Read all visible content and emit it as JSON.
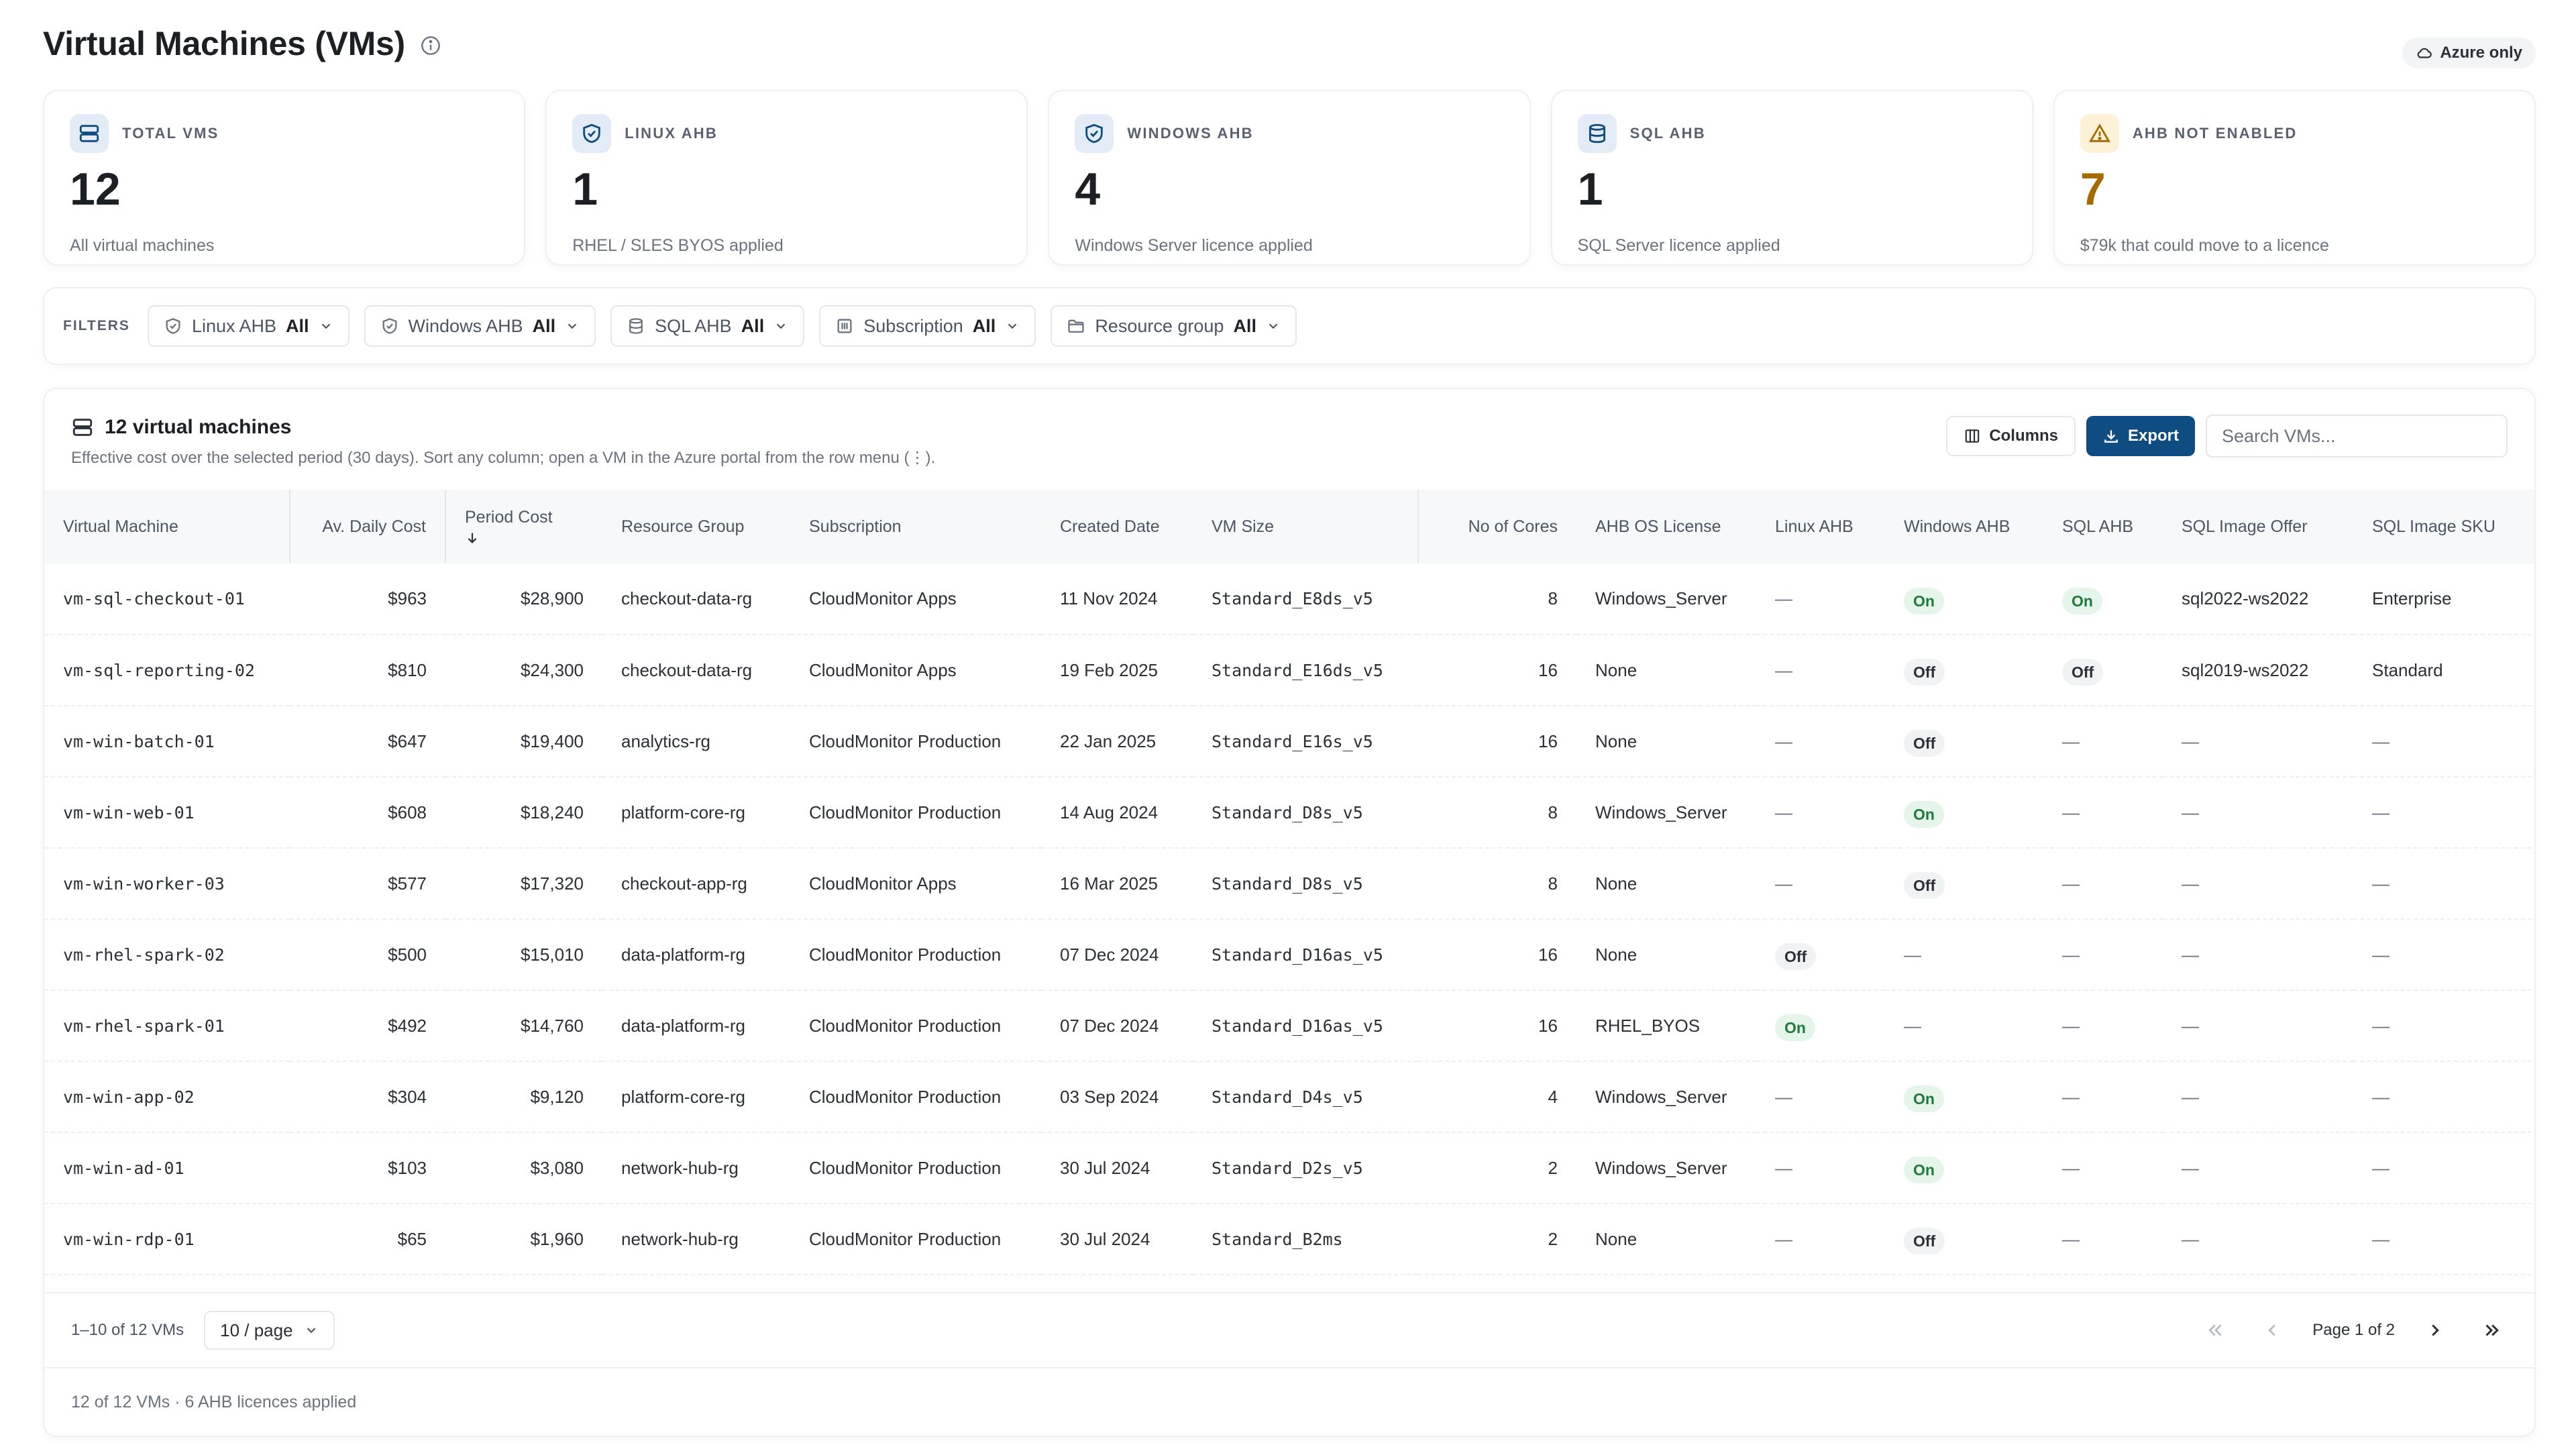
{
  "page": {
    "title": "Virtual Machines (VMs)",
    "azure_badge": "Azure only"
  },
  "kpis": [
    {
      "label": "TOTAL VMS",
      "value": "12",
      "desc": "All virtual machines",
      "icon": "server-icon"
    },
    {
      "label": "LINUX AHB",
      "value": "1",
      "desc": "RHEL / SLES BYOS applied",
      "icon": "shield-check-icon"
    },
    {
      "label": "WINDOWS AHB",
      "value": "4",
      "desc": "Windows Server licence applied",
      "icon": "shield-check-icon"
    },
    {
      "label": "SQL AHB",
      "value": "1",
      "desc": "SQL Server licence applied",
      "icon": "database-icon"
    },
    {
      "label": "AHB NOT ENABLED",
      "value": "7",
      "desc": "$79k that could move to a licence",
      "icon": "warning-icon"
    }
  ],
  "filters": {
    "label": "FILTERS",
    "items": [
      {
        "name": "Linux AHB",
        "value": "All",
        "icon": "shield-icon"
      },
      {
        "name": "Windows AHB",
        "value": "All",
        "icon": "shield-icon"
      },
      {
        "name": "SQL AHB",
        "value": "All",
        "icon": "database-icon"
      },
      {
        "name": "Subscription",
        "value": "All",
        "icon": "building-icon"
      },
      {
        "name": "Resource group",
        "value": "All",
        "icon": "folder-icon"
      }
    ]
  },
  "table_card": {
    "title": "12 virtual machines",
    "subtitle": "Effective cost over the selected period (30 days). Sort any column; open a VM in the Azure portal from the row menu (⋮).",
    "columns_btn": "Columns",
    "export_btn": "Export",
    "search_placeholder": "Search VMs..."
  },
  "columns": [
    "Virtual Machine",
    "Av. Daily Cost",
    "Period Cost",
    "Resource Group",
    "Subscription",
    "Created Date",
    "VM Size",
    "No of Cores",
    "AHB OS License",
    "Linux AHB",
    "Windows AHB",
    "SQL AHB",
    "SQL Image Offer",
    "SQL Image SKU"
  ],
  "rows": [
    [
      "vm-sql-checkout-01",
      "$963",
      "$28,900",
      "checkout-data-rg",
      "CloudMonitor Apps",
      "11 Nov 2024",
      "Standard_E8ds_v5",
      "8",
      "Windows_Server",
      "—",
      "On",
      "On",
      "sql2022-ws2022",
      "Enterprise"
    ],
    [
      "vm-sql-reporting-02",
      "$810",
      "$24,300",
      "checkout-data-rg",
      "CloudMonitor Apps",
      "19 Feb 2025",
      "Standard_E16ds_v5",
      "16",
      "None",
      "—",
      "Off",
      "Off",
      "sql2019-ws2022",
      "Standard"
    ],
    [
      "vm-win-batch-01",
      "$647",
      "$19,400",
      "analytics-rg",
      "CloudMonitor Production",
      "22 Jan 2025",
      "Standard_E16s_v5",
      "16",
      "None",
      "—",
      "Off",
      "—",
      "—",
      "—"
    ],
    [
      "vm-win-web-01",
      "$608",
      "$18,240",
      "platform-core-rg",
      "CloudMonitor Production",
      "14 Aug 2024",
      "Standard_D8s_v5",
      "8",
      "Windows_Server",
      "—",
      "On",
      "—",
      "—",
      "—"
    ],
    [
      "vm-win-worker-03",
      "$577",
      "$17,320",
      "checkout-app-rg",
      "CloudMonitor Apps",
      "16 Mar 2025",
      "Standard_D8s_v5",
      "8",
      "None",
      "—",
      "Off",
      "—",
      "—",
      "—"
    ],
    [
      "vm-rhel-spark-02",
      "$500",
      "$15,010",
      "data-platform-rg",
      "CloudMonitor Production",
      "07 Dec 2024",
      "Standard_D16as_v5",
      "16",
      "None",
      "Off",
      "—",
      "—",
      "—",
      "—"
    ],
    [
      "vm-rhel-spark-01",
      "$492",
      "$14,760",
      "data-platform-rg",
      "CloudMonitor Production",
      "07 Dec 2024",
      "Standard_D16as_v5",
      "16",
      "RHEL_BYOS",
      "On",
      "—",
      "—",
      "—",
      "—"
    ],
    [
      "vm-win-app-02",
      "$304",
      "$9,120",
      "platform-core-rg",
      "CloudMonitor Production",
      "03 Sep 2024",
      "Standard_D4s_v5",
      "4",
      "Windows_Server",
      "—",
      "On",
      "—",
      "—",
      "—"
    ],
    [
      "vm-win-ad-01",
      "$103",
      "$3,080",
      "network-hub-rg",
      "CloudMonitor Production",
      "30 Jul 2024",
      "Standard_D2s_v5",
      "2",
      "Windows_Server",
      "—",
      "On",
      "—",
      "—",
      "—"
    ],
    [
      "vm-win-rdp-01",
      "$65",
      "$1,960",
      "network-hub-rg",
      "CloudMonitor Production",
      "30 Jul 2024",
      "Standard_B2ms",
      "2",
      "None",
      "—",
      "Off",
      "—",
      "—",
      "—"
    ]
  ],
  "pagination": {
    "range": "1–10 of 12 VMs",
    "per_page": "10 / page",
    "page": "Page 1 of 2"
  },
  "summary": "12 of 12 VMs · 6 AHB licences applied",
  "colors": {
    "primary": "#0f4c81",
    "on_bg": "#e6f5ea",
    "on_text": "#1e7a3d",
    "warn": "#a66b00"
  }
}
